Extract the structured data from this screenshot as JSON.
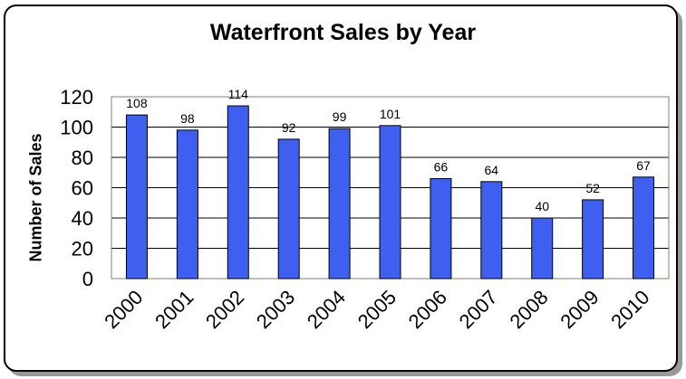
{
  "chart_data": {
    "type": "bar",
    "title": "Waterfront Sales by Year",
    "xlabel": "",
    "ylabel": "Number of Sales",
    "categories": [
      "2000",
      "2001",
      "2002",
      "2003",
      "2004",
      "2005",
      "2006",
      "2007",
      "2008",
      "2009",
      "2010"
    ],
    "values": [
      108,
      98,
      114,
      92,
      99,
      101,
      66,
      64,
      40,
      52,
      67
    ],
    "data_labels": [
      "108",
      "98",
      "114",
      "92",
      "99",
      "101",
      "66",
      "64",
      "40",
      "52",
      "67"
    ],
    "ylim": [
      0,
      120
    ],
    "yticks": [
      "0",
      "20",
      "40",
      "60",
      "80",
      "100",
      "120"
    ],
    "grid": true,
    "bar_color": "#3f5ff0",
    "plot_background": "#ffffff"
  }
}
